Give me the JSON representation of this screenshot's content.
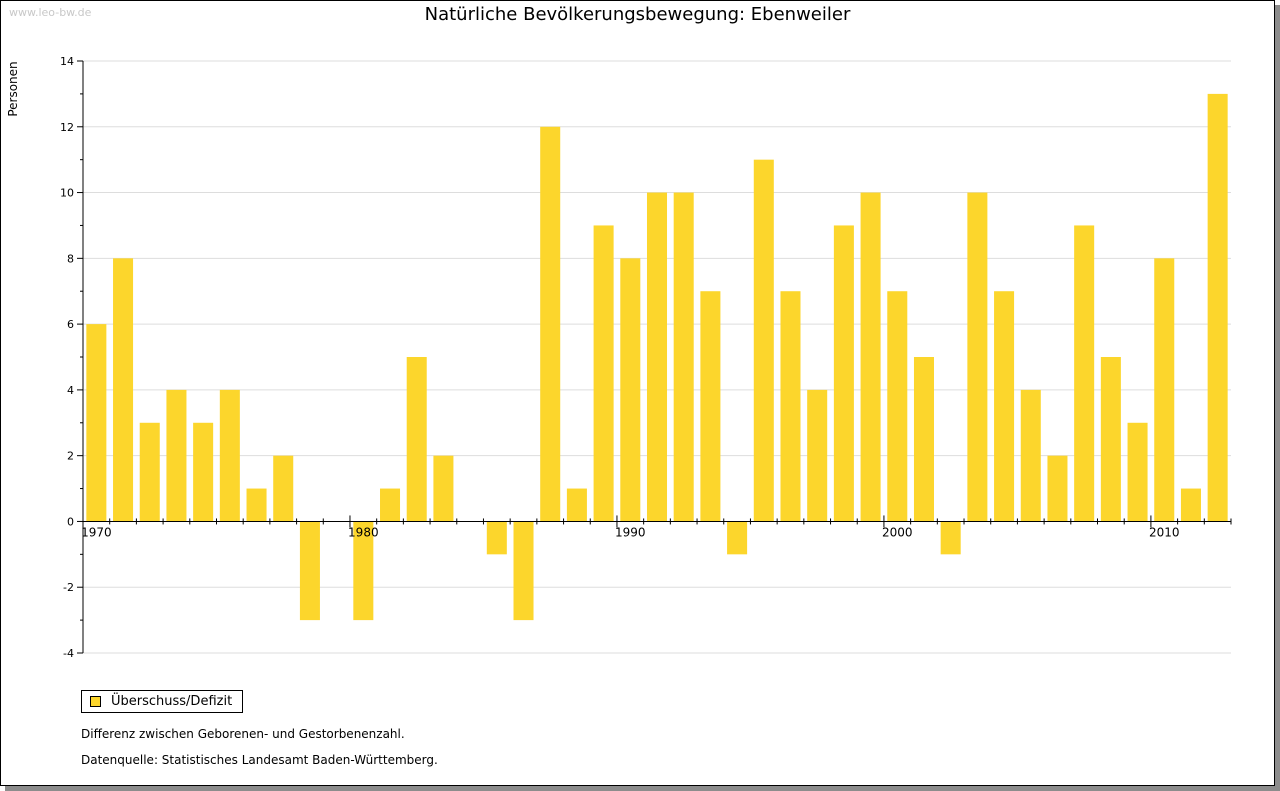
{
  "watermark": "www.leo-bw.de",
  "legend": {
    "label": "Überschuss/Defizit",
    "color": "#fcd62c"
  },
  "notes": {
    "description": "Differenz zwischen Geborenen- und Gestorbenenzahl.",
    "source": "Datenquelle: Statistisches Landesamt Baden-Württemberg."
  },
  "chart_data": {
    "type": "bar",
    "title": "Natürliche Bevölkerungsbewegung: Ebenweiler",
    "xlabel": "",
    "ylabel": "Personen",
    "ylim": [
      -4,
      14
    ],
    "yticks": [
      -4,
      -2,
      0,
      2,
      4,
      6,
      8,
      10,
      12,
      14
    ],
    "xtick_labels": [
      "1970",
      "1980",
      "1990",
      "2000",
      "2010"
    ],
    "grid": true,
    "legend_position": "bottom-left",
    "bar_color": "#fcd62c",
    "categories": [
      1970,
      1971,
      1972,
      1973,
      1974,
      1975,
      1976,
      1977,
      1978,
      1979,
      1980,
      1981,
      1982,
      1983,
      1984,
      1985,
      1986,
      1987,
      1988,
      1989,
      1990,
      1991,
      1992,
      1993,
      1994,
      1995,
      1996,
      1997,
      1998,
      1999,
      2000,
      2001,
      2002,
      2003,
      2004,
      2005,
      2006,
      2007,
      2008,
      2009,
      2010,
      2011,
      2012
    ],
    "series": [
      {
        "name": "Überschuss/Defizit",
        "values": [
          6,
          8,
          3,
          4,
          3,
          4,
          1,
          2,
          -3,
          0,
          -3,
          1,
          5,
          2,
          0,
          -1,
          -3,
          12,
          1,
          9,
          8,
          10,
          10,
          7,
          -1,
          11,
          7,
          4,
          9,
          10,
          7,
          5,
          -1,
          10,
          7,
          4,
          2,
          9,
          5,
          3,
          8,
          1,
          13
        ]
      }
    ]
  }
}
